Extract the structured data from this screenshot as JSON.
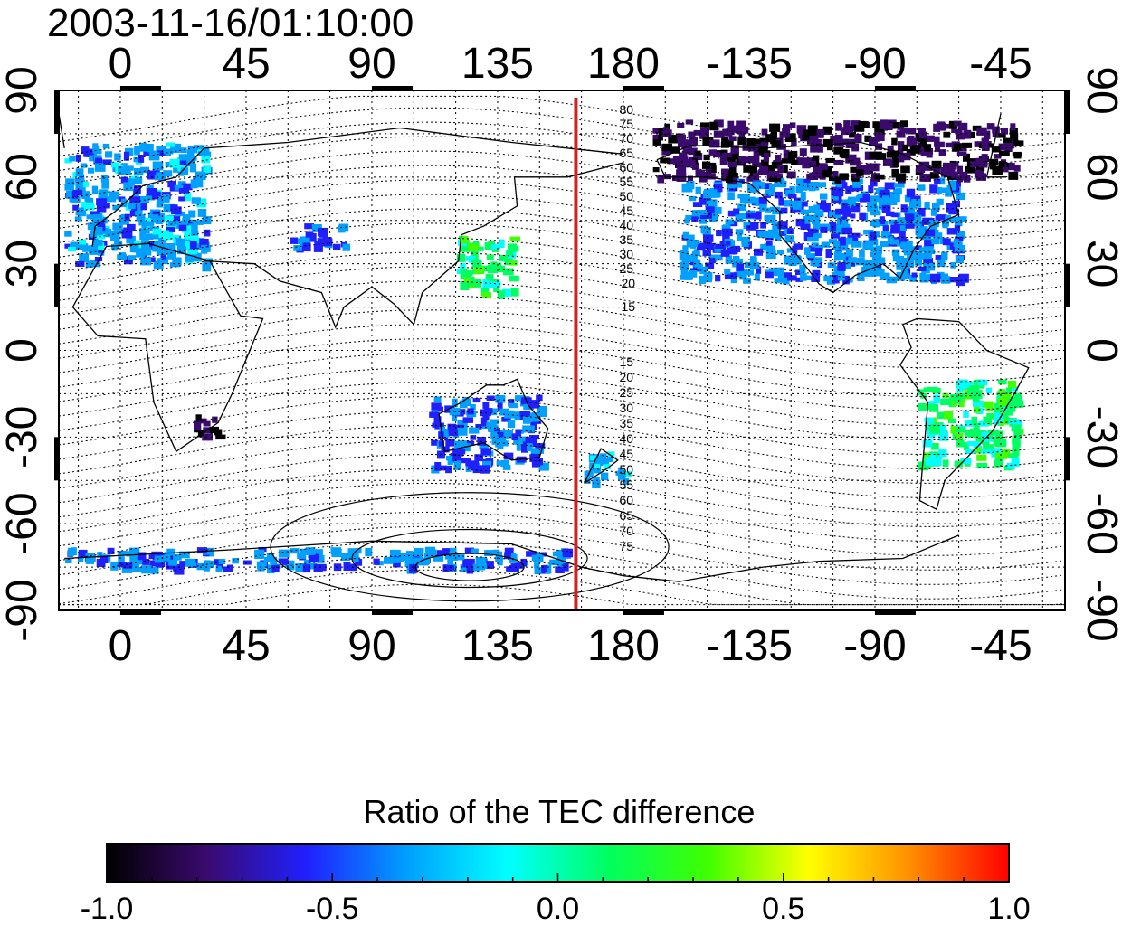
{
  "timestamp": "2003-11-16/01:10:00",
  "longitude_ticks": [
    "0",
    "45",
    "90",
    "135",
    "180",
    "-135",
    "-90",
    "-45"
  ],
  "latitude_ticks": [
    "90",
    "60",
    "30",
    "0",
    "-30",
    "-60",
    "-90"
  ],
  "marker_longitude": 163,
  "marker_color": "#d62020",
  "contour_labels_north": [
    "80",
    "75",
    "70",
    "65",
    "60",
    "55",
    "50",
    "45",
    "40",
    "35",
    "30",
    "25",
    "20",
    "15"
  ],
  "contour_labels_south": [
    "15",
    "20",
    "25",
    "30",
    "35",
    "40",
    "45",
    "50",
    "55",
    "60",
    "65",
    "70",
    "75"
  ],
  "colorbar": {
    "title": "Ratio of the TEC difference",
    "min": -1.0,
    "max": 1.0,
    "tick_labels": [
      "-1.0",
      "-0.5",
      "0.0",
      "0.5",
      "1.0"
    ],
    "colors": [
      "#000000",
      "#3a0a6e",
      "#2020ff",
      "#00a0ff",
      "#00ffff",
      "#00ff60",
      "#40ff00",
      "#ffff00",
      "#ff9000",
      "#ff0000"
    ]
  },
  "chart_data": {
    "type": "heatmap",
    "title": "2003-11-16/01:10:00",
    "xlabel": "",
    "ylabel": "",
    "xlim": [
      -22,
      338
    ],
    "ylim": [
      -90,
      90
    ],
    "value_range": [
      -1.0,
      1.0
    ],
    "grid": true,
    "regions": [
      {
        "lon": [
          -20,
          30
        ],
        "lat": [
          30,
          72
        ],
        "value": -0.35
      },
      {
        "lon": [
          60,
          80
        ],
        "lat": [
          36,
          44
        ],
        "value": -0.45
      },
      {
        "lon": [
          120,
          140
        ],
        "lat": [
          20,
          40
        ],
        "value": 0.1
      },
      {
        "lon": [
          -160,
          -60
        ],
        "lat": [
          25,
          60
        ],
        "value": -0.4
      },
      {
        "lon": [
          -170,
          -40
        ],
        "lat": [
          60,
          80
        ],
        "value": -0.85
      },
      {
        "lon": [
          -75,
          -40
        ],
        "lat": [
          -40,
          -10
        ],
        "value": 0.1
      },
      {
        "lon": [
          110,
          150
        ],
        "lat": [
          -40,
          -15
        ],
        "value": -0.45
      },
      {
        "lon": [
          165,
          180
        ],
        "lat": [
          -45,
          -35
        ],
        "value": -0.3
      },
      {
        "lon": [
          -20,
          160
        ],
        "lat": [
          -75,
          -68
        ],
        "value": -0.4
      },
      {
        "lon": [
          25,
          35
        ],
        "lat": [
          -30,
          -22
        ],
        "value": -0.9
      }
    ]
  }
}
